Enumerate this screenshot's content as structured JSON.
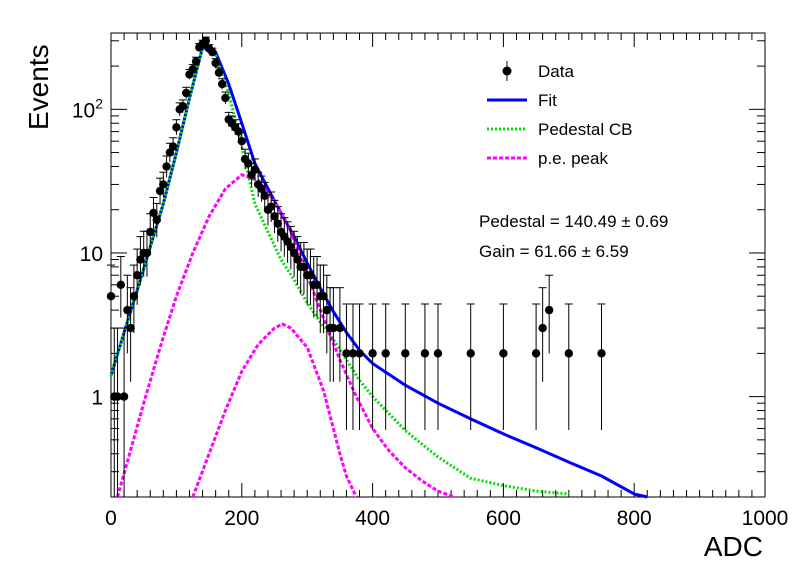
{
  "chart_data": {
    "type": "scatter",
    "xlabel": "ADC",
    "ylabel": "Events",
    "xlim": [
      0,
      1000
    ],
    "ylim": [
      0.2,
      340
    ],
    "y_scale": "log",
    "x_ticks": [
      0,
      200,
      400,
      600,
      800,
      1000
    ],
    "x_tick_labels": [
      "0",
      "200",
      "400",
      "600",
      "800",
      "1000"
    ],
    "y_ticks": [
      1,
      10,
      100
    ],
    "y_tick_labels": [
      "1",
      "10",
      "10²"
    ],
    "legend_position": "top-right",
    "legend": [
      {
        "label": "Data",
        "style": "marker",
        "color": "#000000"
      },
      {
        "label": "Fit",
        "style": "line",
        "color": "#0000ff"
      },
      {
        "label": "Pedestal CB",
        "style": "dotted",
        "color": "#00dd00"
      },
      {
        "label": "p.e. peak",
        "style": "dashed",
        "color": "#ff00ff"
      }
    ],
    "annotations": [
      "Pedestal = 140.49 ± 0.69",
      "Gain = 61.66 ± 6.59"
    ],
    "series": [
      {
        "name": "Data",
        "kind": "points_with_errors",
        "color": "#000000",
        "x": [
          0,
          5,
          10,
          15,
          20,
          25,
          30,
          35,
          40,
          45,
          50,
          55,
          60,
          65,
          70,
          75,
          80,
          85,
          90,
          95,
          100,
          105,
          110,
          115,
          120,
          125,
          130,
          135,
          140,
          145,
          150,
          155,
          160,
          165,
          170,
          175,
          180,
          185,
          190,
          195,
          200,
          205,
          210,
          215,
          220,
          225,
          230,
          235,
          240,
          245,
          250,
          255,
          260,
          265,
          270,
          275,
          280,
          285,
          290,
          295,
          300,
          305,
          310,
          315,
          320,
          325,
          330,
          335,
          340,
          350,
          360,
          370,
          380,
          400,
          420,
          450,
          480,
          500,
          550,
          600,
          650,
          660,
          670,
          700,
          750
        ],
        "y": [
          5,
          1,
          1,
          6,
          1,
          4,
          3,
          5,
          7,
          9,
          10,
          10,
          14,
          19,
          17,
          27,
          30,
          40,
          50,
          55,
          75,
          100,
          105,
          130,
          175,
          190,
          215,
          270,
          285,
          300,
          265,
          250,
          210,
          180,
          150,
          120,
          85,
          80,
          75,
          70,
          60,
          45,
          42,
          35,
          38,
          30,
          28,
          25,
          20,
          21,
          18,
          16,
          14,
          13,
          12,
          11,
          10,
          9,
          8,
          8,
          7,
          7,
          6,
          6,
          5,
          5,
          4,
          3,
          3,
          3,
          2,
          2,
          2,
          2,
          2,
          2,
          2,
          2,
          2,
          2,
          2,
          3,
          4,
          2,
          2
        ]
      },
      {
        "name": "Fit",
        "kind": "line",
        "color": "#0000ff",
        "x": [
          0,
          20,
          40,
          60,
          80,
          100,
          120,
          140,
          160,
          180,
          200,
          220,
          240,
          260,
          280,
          300,
          320,
          340,
          360,
          380,
          400,
          450,
          500,
          550,
          600,
          650,
          700,
          750,
          800,
          820
        ],
        "y": [
          1.4,
          2.8,
          5.5,
          11,
          22,
          50,
          120,
          270,
          250,
          150,
          80,
          42,
          28,
          19,
          13,
          8.5,
          5.7,
          3.9,
          2.8,
          2.1,
          1.7,
          1.2,
          0.9,
          0.7,
          0.55,
          0.44,
          0.35,
          0.28,
          0.21,
          0.2
        ]
      },
      {
        "name": "Pedestal CB",
        "kind": "line",
        "color": "#00dd00",
        "x": [
          0,
          20,
          40,
          60,
          80,
          100,
          120,
          140,
          160,
          180,
          200,
          220,
          240,
          260,
          280,
          300,
          320,
          340,
          360,
          380,
          400,
          450,
          500,
          550,
          600,
          650,
          700
        ],
        "y": [
          1.4,
          2.8,
          5.5,
          11,
          22,
          50,
          120,
          270,
          240,
          130,
          55,
          22,
          14,
          9,
          6.5,
          4.5,
          3.3,
          2.5,
          1.8,
          1.3,
          1.0,
          0.58,
          0.38,
          0.27,
          0.24,
          0.22,
          0.21
        ]
      },
      {
        "name": "p.e. peak",
        "kind": "line",
        "color": "#ff00ff",
        "x": [
          10,
          25,
          50,
          75,
          100,
          125,
          150,
          175,
          200,
          225,
          250,
          275,
          300,
          325,
          350,
          375,
          400,
          425,
          450,
          475,
          500,
          525
        ],
        "y": [
          0.2,
          0.35,
          0.9,
          2.2,
          5,
          10,
          18,
          28,
          35,
          32,
          23,
          14,
          7,
          3.5,
          1.8,
          1.0,
          0.6,
          0.42,
          0.32,
          0.26,
          0.22,
          0.2
        ]
      },
      {
        "name": "p.e. peak",
        "kind": "line",
        "color": "#ff00ff",
        "x": [
          125,
          150,
          175,
          200,
          225,
          250,
          262,
          275,
          300,
          325,
          340,
          350,
          360,
          375
        ],
        "y": [
          0.2,
          0.4,
          0.8,
          1.5,
          2.3,
          3.0,
          3.2,
          3.0,
          2.2,
          1.1,
          0.6,
          0.4,
          0.28,
          0.2
        ]
      }
    ]
  }
}
